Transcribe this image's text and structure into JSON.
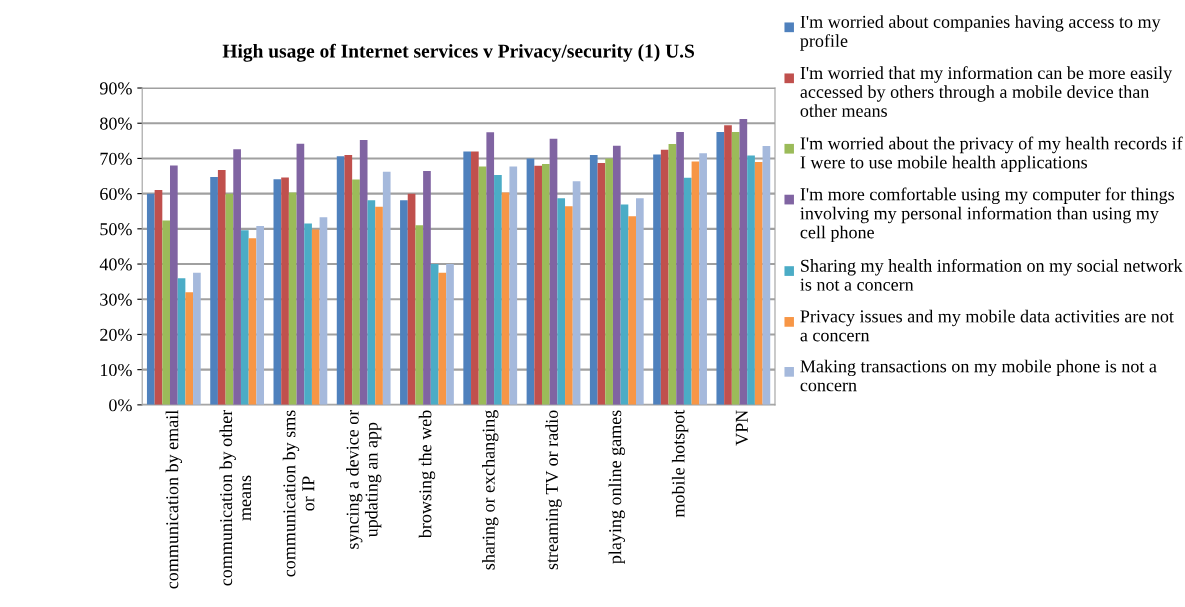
{
  "chart_data": {
    "type": "bar",
    "title": "High usage of Internet services v Privacy/security (1) U.S",
    "categories": [
      "communication by email",
      "communication by other means",
      "communication by sms or IP",
      "syncing a device or updating an app",
      "browsing the web",
      "sharing or exchanging",
      "streaming TV or radio",
      "playing online games",
      "mobile hotspot",
      "VPN"
    ],
    "series": [
      {
        "name": "I'm worried about companies having access to my profile",
        "color": "#4f81bd",
        "values": [
          60,
          64.7,
          64.1,
          70.6,
          58.1,
          72,
          70,
          71,
          71.1,
          77.5
        ]
      },
      {
        "name": "I'm worried that my information can be more easily accessed by others through a mobile device than other means",
        "color": "#c0504d",
        "values": [
          61,
          66.7,
          64.6,
          71,
          60,
          72,
          67.9,
          68.7,
          72.5,
          79.4
        ]
      },
      {
        "name": "I'm worried about the privacy of my health records if I were to use mobile health applications",
        "color": "#9bbb59",
        "values": [
          52.4,
          60,
          60.3,
          64,
          51,
          67.7,
          68.4,
          70,
          74.1,
          77.5
        ]
      },
      {
        "name": "I'm more comfortable using my computer for things involving my personal information than using my cell phone",
        "color": "#8064a2",
        "values": [
          68,
          72.6,
          74.2,
          75.2,
          66.4,
          77.4,
          75.6,
          73.6,
          77.5,
          81.2
        ]
      },
      {
        "name": "Sharing my health information on my social network is not a concern",
        "color": "#4bacc6",
        "values": [
          36,
          49.6,
          51.5,
          58.1,
          40,
          65.3,
          58.7,
          56.9,
          64.5,
          70.8
        ]
      },
      {
        "name": "Privacy issues and my mobile data activities are not a concern",
        "color": "#f79646",
        "values": [
          32,
          47.3,
          49.8,
          56.3,
          37.5,
          60.3,
          56.4,
          53.6,
          69.1,
          69
        ]
      },
      {
        "name": "Making transactions on my mobile phone is not a concern",
        "color": "#a5b9dc",
        "values": [
          37.5,
          50.8,
          53.3,
          66.2,
          40,
          67.7,
          63.5,
          58.7,
          71.5,
          73.5
        ]
      }
    ],
    "ylim": [
      0,
      90
    ],
    "yticks": [
      {
        "value": 0,
        "label": "0%"
      },
      {
        "value": 10,
        "label": "10%"
      },
      {
        "value": 20,
        "label": "20%"
      },
      {
        "value": 30,
        "label": "30%"
      },
      {
        "value": 40,
        "label": "40%"
      },
      {
        "value": 50,
        "label": "50%"
      },
      {
        "value": 60,
        "label": "60%"
      },
      {
        "value": 70,
        "label": "70%"
      },
      {
        "value": 80,
        "label": "80%"
      },
      {
        "value": 90,
        "label": "90%"
      }
    ],
    "grid": "y",
    "legend": "right"
  }
}
